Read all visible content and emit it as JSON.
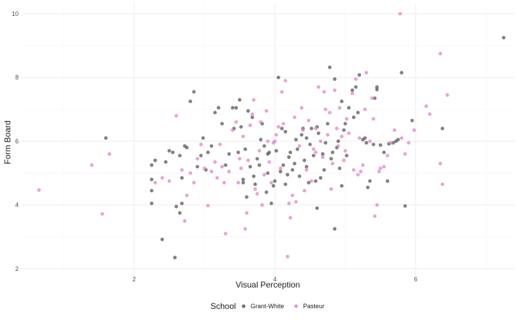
{
  "chart_data": {
    "type": "scatter",
    "title": "",
    "xlabel": "Visual Perception",
    "ylabel": "Form Board",
    "xlim": [
      0.4,
      7.4
    ],
    "ylim": [
      1.8,
      10.3
    ],
    "x_ticks": [
      2,
      4,
      6
    ],
    "y_ticks": [
      2,
      4,
      6,
      8,
      10
    ],
    "grid": true,
    "legend": {
      "title": "School",
      "position": "bottom"
    },
    "series": [
      {
        "name": "Grant-White",
        "color": "#4d4d4d",
        "points": [
          [
            7.25,
            9.25
          ],
          [
            6.38,
            6.4
          ],
          [
            5.95,
            6.65
          ],
          [
            5.85,
            3.97
          ],
          [
            5.8,
            8.15
          ],
          [
            5.75,
            6.05
          ],
          [
            5.72,
            6.0
          ],
          [
            5.68,
            5.95
          ],
          [
            5.62,
            5.92
          ],
          [
            5.55,
            5.65
          ],
          [
            5.5,
            5.88
          ],
          [
            5.45,
            7.7
          ],
          [
            5.45,
            7.62
          ],
          [
            5.42,
            7.35
          ],
          [
            5.4,
            5.9
          ],
          [
            5.35,
            4.75
          ],
          [
            5.32,
            4.55
          ],
          [
            5.3,
            5.95
          ],
          [
            5.28,
            6.1
          ],
          [
            5.25,
            6.05
          ],
          [
            5.2,
            8.08
          ],
          [
            5.18,
            6.9
          ],
          [
            5.15,
            7.7
          ],
          [
            5.12,
            6.75
          ],
          [
            5.1,
            7.6
          ],
          [
            5.05,
            7.05
          ],
          [
            5.02,
            5.55
          ],
          [
            5.0,
            6.55
          ],
          [
            4.98,
            6.35
          ],
          [
            4.95,
            7.25
          ],
          [
            4.92,
            5.15
          ],
          [
            4.9,
            6.0
          ],
          [
            4.88,
            5.8
          ],
          [
            4.85,
            7.95
          ],
          [
            4.82,
            5.65
          ],
          [
            4.8,
            5.45
          ],
          [
            4.78,
            8.32
          ],
          [
            4.75,
            6.55
          ],
          [
            4.72,
            5.95
          ],
          [
            4.7,
            5.1
          ],
          [
            4.68,
            5.6
          ],
          [
            4.65,
            4.85
          ],
          [
            4.62,
            6.25
          ],
          [
            4.6,
            6.45
          ],
          [
            4.58,
            4.75
          ],
          [
            4.55,
            5.55
          ],
          [
            4.52,
            6.4
          ],
          [
            4.5,
            5.9
          ],
          [
            4.48,
            4.7
          ],
          [
            4.45,
            6.1
          ],
          [
            4.42,
            5.4
          ],
          [
            4.4,
            6.4
          ],
          [
            4.38,
            6.2
          ],
          [
            4.35,
            4.9
          ],
          [
            4.32,
            5.75
          ],
          [
            4.3,
            6.05
          ],
          [
            4.28,
            5.3
          ],
          [
            4.25,
            5.1
          ],
          [
            4.22,
            5.65
          ],
          [
            4.2,
            5.5
          ],
          [
            4.18,
            4.95
          ],
          [
            4.15,
            6.3
          ],
          [
            4.12,
            5.25
          ],
          [
            4.1,
            6.4
          ],
          [
            4.08,
            5.05
          ],
          [
            4.05,
            8.0
          ],
          [
            4.02,
            5.7
          ],
          [
            4.0,
            4.75
          ],
          [
            3.98,
            4.6
          ],
          [
            3.95,
            4.05
          ],
          [
            3.92,
            5.65
          ],
          [
            3.9,
            5.6
          ],
          [
            3.88,
            4.4
          ],
          [
            3.85,
            5.85
          ],
          [
            3.82,
            6.55
          ],
          [
            3.8,
            6.05
          ],
          [
            3.78,
            5.25
          ],
          [
            3.75,
            5.45
          ],
          [
            3.72,
            4.65
          ],
          [
            3.7,
            4.9
          ],
          [
            3.68,
            6.75
          ],
          [
            3.65,
            5.2
          ],
          [
            3.62,
            6.95
          ],
          [
            3.6,
            4.25
          ],
          [
            3.58,
            5.75
          ],
          [
            3.55,
            4.7
          ],
          [
            3.52,
            6.45
          ],
          [
            3.5,
            7.3
          ],
          [
            3.48,
            5.65
          ],
          [
            3.45,
            7.05
          ],
          [
            3.42,
            6.4
          ],
          [
            3.4,
            7.05
          ],
          [
            3.35,
            5.6
          ],
          [
            3.3,
            5.25
          ],
          [
            3.25,
            6.55
          ],
          [
            3.2,
            7.05
          ],
          [
            3.15,
            6.9
          ],
          [
            3.1,
            5.85
          ],
          [
            3.05,
            5.65
          ],
          [
            3.02,
            5.1
          ],
          [
            2.98,
            6.1
          ],
          [
            2.95,
            5.55
          ],
          [
            2.9,
            5.2
          ],
          [
            2.85,
            7.55
          ],
          [
            2.8,
            7.25
          ],
          [
            2.75,
            5.8
          ],
          [
            2.72,
            5.85
          ],
          [
            2.68,
            4.85
          ],
          [
            2.65,
            5.55
          ],
          [
            2.6,
            3.95
          ],
          [
            2.58,
            2.35
          ],
          [
            2.55,
            5.65
          ],
          [
            2.5,
            5.7
          ],
          [
            2.45,
            5.35
          ],
          [
            2.4,
            2.92
          ],
          [
            2.3,
            5.4
          ],
          [
            2.25,
            5.25
          ],
          [
            2.25,
            4.8
          ],
          [
            2.25,
            4.45
          ],
          [
            2.25,
            4.05
          ],
          [
            1.6,
            6.1
          ],
          [
            2.65,
            3.75
          ],
          [
            2.68,
            4.05
          ],
          [
            4.85,
            3.25
          ],
          [
            4.6,
            3.9
          ],
          [
            3.55,
            4.8
          ],
          [
            4.95,
            4.6
          ],
          [
            5.6,
            4.75
          ],
          [
            3.9,
            5.0
          ],
          [
            4.15,
            4.65
          ],
          [
            4.45,
            5.2
          ]
        ]
      },
      {
        "name": "Pasteur",
        "color": "#e07cc4",
        "points": [
          [
            5.78,
            10.0
          ],
          [
            6.35,
            8.75
          ],
          [
            6.45,
            7.45
          ],
          [
            6.15,
            7.1
          ],
          [
            6.2,
            6.85
          ],
          [
            6.35,
            5.3
          ],
          [
            6.38,
            4.65
          ],
          [
            5.98,
            6.35
          ],
          [
            5.9,
            5.95
          ],
          [
            5.85,
            5.6
          ],
          [
            5.8,
            6.1
          ],
          [
            5.7,
            6.35
          ],
          [
            5.65,
            5.95
          ],
          [
            5.6,
            5.55
          ],
          [
            5.55,
            5.2
          ],
          [
            5.5,
            5.15
          ],
          [
            5.48,
            5.05
          ],
          [
            5.45,
            4.0
          ],
          [
            5.42,
            3.65
          ],
          [
            5.4,
            6.7
          ],
          [
            5.38,
            7.35
          ],
          [
            5.35,
            6.0
          ],
          [
            5.3,
            8.15
          ],
          [
            5.28,
            7.0
          ],
          [
            5.25,
            5.25
          ],
          [
            5.22,
            5.05
          ],
          [
            5.2,
            6.1
          ],
          [
            5.15,
            7.95
          ],
          [
            5.1,
            7.5
          ],
          [
            5.05,
            6.25
          ],
          [
            5.02,
            6.7
          ],
          [
            5.0,
            5.7
          ],
          [
            4.98,
            5.4
          ],
          [
            4.95,
            6.15
          ],
          [
            4.92,
            7.05
          ],
          [
            4.9,
            5.85
          ],
          [
            4.85,
            7.6
          ],
          [
            4.82,
            5.3
          ],
          [
            4.8,
            4.5
          ],
          [
            4.78,
            6.9
          ],
          [
            4.75,
            6.2
          ],
          [
            4.72,
            7.0
          ],
          [
            4.7,
            7.55
          ],
          [
            4.68,
            5.5
          ],
          [
            4.65,
            6.0
          ],
          [
            4.62,
            7.7
          ],
          [
            4.58,
            6.4
          ],
          [
            4.55,
            5.75
          ],
          [
            4.52,
            4.75
          ],
          [
            4.48,
            6.65
          ],
          [
            4.45,
            5.1
          ],
          [
            4.42,
            4.45
          ],
          [
            4.4,
            6.35
          ],
          [
            4.35,
            5.85
          ],
          [
            4.3,
            4.1
          ],
          [
            4.28,
            6.75
          ],
          [
            4.25,
            4.3
          ],
          [
            4.22,
            3.6
          ],
          [
            4.2,
            4.05
          ],
          [
            4.18,
            2.38
          ],
          [
            4.15,
            7.9
          ],
          [
            4.12,
            6.55
          ],
          [
            4.1,
            7.55
          ],
          [
            4.08,
            5.15
          ],
          [
            4.05,
            6.45
          ],
          [
            4.02,
            6.2
          ],
          [
            4.0,
            6.0
          ],
          [
            3.98,
            5.95
          ],
          [
            3.95,
            4.7
          ],
          [
            3.92,
            5.35
          ],
          [
            3.9,
            6.0
          ],
          [
            3.85,
            4.95
          ],
          [
            3.82,
            4.0
          ],
          [
            3.8,
            6.6
          ],
          [
            3.78,
            5.7
          ],
          [
            3.75,
            4.35
          ],
          [
            3.72,
            4.5
          ],
          [
            3.7,
            7.3
          ],
          [
            3.68,
            6.85
          ],
          [
            3.65,
            6.5
          ],
          [
            3.62,
            5.4
          ],
          [
            3.6,
            3.75
          ],
          [
            3.58,
            3.25
          ],
          [
            3.55,
            6.15
          ],
          [
            3.52,
            5.15
          ],
          [
            3.5,
            5.45
          ],
          [
            3.48,
            4.7
          ],
          [
            3.45,
            6.6
          ],
          [
            3.4,
            6.35
          ],
          [
            3.35,
            5.05
          ],
          [
            3.3,
            3.1
          ],
          [
            3.28,
            4.7
          ],
          [
            3.25,
            5.2
          ],
          [
            3.22,
            5.9
          ],
          [
            3.18,
            4.85
          ],
          [
            3.15,
            5.35
          ],
          [
            3.1,
            5.05
          ],
          [
            3.05,
            3.98
          ],
          [
            3.0,
            5.15
          ],
          [
            2.95,
            5.9
          ],
          [
            2.9,
            5.45
          ],
          [
            2.85,
            4.7
          ],
          [
            2.8,
            5.0
          ],
          [
            2.75,
            4.3
          ],
          [
            2.72,
            3.5
          ],
          [
            2.68,
            5.1
          ],
          [
            2.6,
            6.8
          ],
          [
            2.5,
            4.75
          ],
          [
            2.4,
            4.85
          ],
          [
            2.3,
            4.7
          ],
          [
            1.65,
            5.6
          ],
          [
            1.4,
            5.25
          ],
          [
            1.55,
            3.72
          ],
          [
            0.65,
            4.47
          ],
          [
            5.12,
            5.1
          ],
          [
            4.58,
            5.65
          ],
          [
            4.88,
            6.4
          ],
          [
            5.18,
            4.95
          ],
          [
            3.88,
            6.95
          ],
          [
            4.38,
            7.05
          ]
        ]
      }
    ]
  }
}
